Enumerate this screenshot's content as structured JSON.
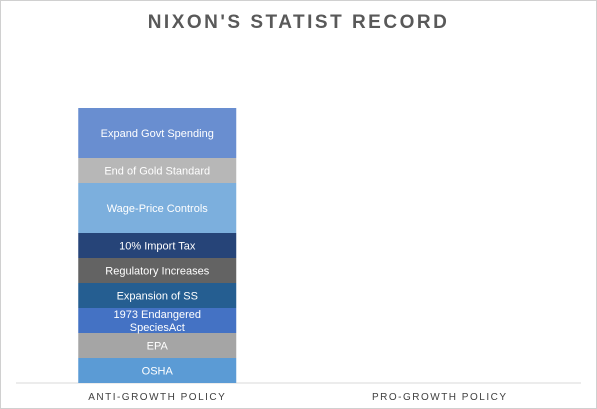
{
  "chart_data": {
    "type": "bar",
    "stacked": true,
    "title": "NIXON'S STATIST RECORD",
    "categories": [
      "ANTI-GROWTH POLICY",
      "PRO-GROWTH POLICY"
    ],
    "series": [
      {
        "name": "OSHA",
        "values": [
          1,
          0
        ],
        "color": "#5b9bd5"
      },
      {
        "name": "EPA",
        "values": [
          1,
          0
        ],
        "color": "#a5a5a5"
      },
      {
        "name": "1973 Endangered SpeciesAct",
        "values": [
          1,
          0
        ],
        "color": "#4472c4"
      },
      {
        "name": "Expansion of SS",
        "values": [
          1,
          0
        ],
        "color": "#255e91"
      },
      {
        "name": "Regulatory Increases",
        "values": [
          1,
          0
        ],
        "color": "#636363"
      },
      {
        "name": "10% Import Tax",
        "values": [
          1,
          0
        ],
        "color": "#264478"
      },
      {
        "name": "Wage-Price Controls",
        "values": [
          2,
          0
        ],
        "color": "#7cafdd"
      },
      {
        "name": "End of Gold Standard",
        "values": [
          1,
          0
        ],
        "color": "#b7b7b7"
      },
      {
        "name": "Expand Govt Spending",
        "values": [
          2,
          0
        ],
        "color": "#698ed0"
      }
    ],
    "ylim": [
      0,
      11
    ],
    "grid": false,
    "legend": "none"
  }
}
